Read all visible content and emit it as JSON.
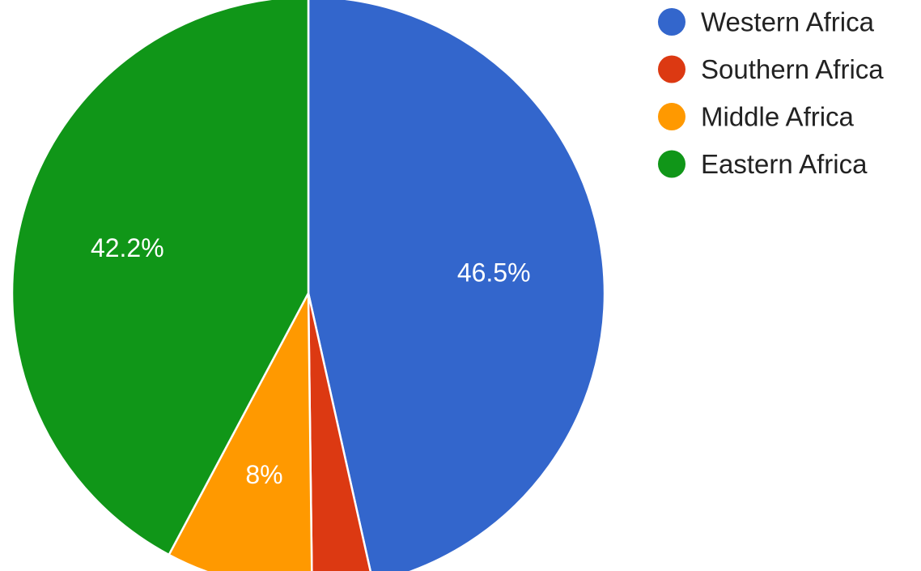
{
  "chart_data": {
    "type": "pie",
    "slices": [
      {
        "label": "Western Africa",
        "value": 46.5,
        "value_label": "46.5%",
        "color": "#3366cc"
      },
      {
        "label": "Southern Africa",
        "value": 3.3,
        "value_label": "",
        "color": "#dc3912"
      },
      {
        "label": "Middle Africa",
        "value": 8.0,
        "value_label": "8%",
        "color": "#ff9900"
      },
      {
        "label": "Eastern Africa",
        "value": 42.2,
        "value_label": "42.2%",
        "color": "#109618"
      }
    ],
    "legend_position": "top-right",
    "start_angle": "top",
    "direction": "clockwise"
  }
}
